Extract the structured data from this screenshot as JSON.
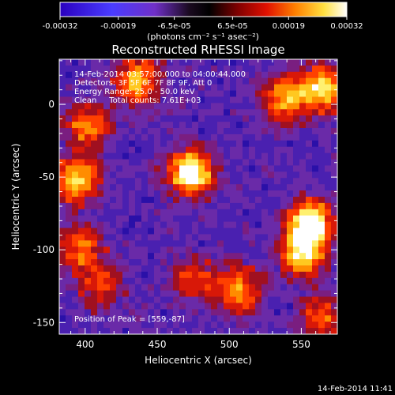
{
  "colorbar": {
    "ticks": [
      "-0.00032",
      "-0.00019",
      "-6.5e-05",
      "6.5e-05",
      "0.00019",
      "0.00032"
    ],
    "unit_label": "(photons cm⁻² s⁻¹ asec⁻²)",
    "range": [
      -0.00032,
      0.00032
    ]
  },
  "chart_data": {
    "type": "heatmap",
    "title": "Reconstructed RHESSI Image",
    "xlabel": "Heliocentric X (arcsec)",
    "ylabel": "Heliocentric Y (arcsec)",
    "xlim": [
      382,
      575
    ],
    "ylim": [
      -158,
      31
    ],
    "xticks": [
      400,
      450,
      500,
      550
    ],
    "yticks": [
      0,
      -50,
      -100,
      -150
    ],
    "colormap": "rainbow-black-red-yellow-white",
    "annotations": {
      "time": "14-Feb-2014 03:57:00.000 to 04:00:44.000",
      "detectors": "Detectors: 3F 5F 6F 7F 8F 9F, Att 0",
      "energy": "Energy Range: 25.0 - 50.0 keV",
      "clean": "Clean     Total counts: 7.61E+03",
      "peak": "Position of Peak = [559,-87]"
    },
    "sources": [
      {
        "x": 473,
        "y": -47,
        "intensity": 1.0
      },
      {
        "x": 556,
        "y": -82,
        "intensity": 1.0
      },
      {
        "x": 551,
        "y": -103,
        "intensity": 0.8
      },
      {
        "x": 539,
        "y": 4,
        "intensity": 0.7
      },
      {
        "x": 566,
        "y": 11,
        "intensity": 0.8
      },
      {
        "x": 395,
        "y": -52,
        "intensity": 0.8
      },
      {
        "x": 402,
        "y": -14,
        "intensity": 0.6
      },
      {
        "x": 397,
        "y": -99,
        "intensity": 0.55
      },
      {
        "x": 436,
        "y": 16,
        "intensity": 0.7
      },
      {
        "x": 507,
        "y": -128,
        "intensity": 0.65
      },
      {
        "x": 476,
        "y": -120,
        "intensity": 0.45
      },
      {
        "x": 565,
        "y": -148,
        "intensity": 0.5
      },
      {
        "x": 410,
        "y": -125,
        "intensity": 0.4
      }
    ]
  },
  "footer": {
    "timestamp": "14-Feb-2014 11:41"
  }
}
